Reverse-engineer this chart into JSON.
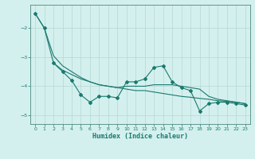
{
  "xlabel": "Humidex (Indice chaleur)",
  "bg_color": "#d4f0ee",
  "grid_color": "#b8dbd8",
  "line_color": "#1a7a6e",
  "spine_color": "#4a8a80",
  "xlim": [
    -0.5,
    23.5
  ],
  "ylim": [
    -5.3,
    -1.2
  ],
  "yticks": [
    -5,
    -4,
    -3,
    -2
  ],
  "xticks": [
    0,
    1,
    2,
    3,
    4,
    5,
    6,
    7,
    8,
    9,
    10,
    11,
    12,
    13,
    14,
    15,
    16,
    17,
    18,
    19,
    20,
    21,
    22,
    23
  ],
  "series1_x": [
    0,
    1,
    2,
    3,
    4,
    5,
    6,
    7,
    8,
    9,
    10,
    11,
    12,
    13,
    14,
    15,
    16,
    17,
    18,
    19,
    20,
    21,
    22,
    23
  ],
  "series1_y": [
    -1.5,
    -2.0,
    -3.2,
    -3.5,
    -3.8,
    -4.3,
    -4.55,
    -4.35,
    -4.35,
    -4.4,
    -3.85,
    -3.85,
    -3.75,
    -3.35,
    -3.3,
    -3.85,
    -4.05,
    -4.15,
    -4.85,
    -4.6,
    -4.55,
    -4.55,
    -4.6,
    -4.65
  ],
  "series2_x": [
    2,
    3,
    4,
    5,
    6,
    7,
    8,
    9,
    10,
    11,
    12,
    13,
    14,
    15,
    16,
    17,
    18,
    19,
    20,
    21,
    22,
    23
  ],
  "series2_y": [
    -3.2,
    -3.45,
    -3.6,
    -3.75,
    -3.85,
    -3.95,
    -4.0,
    -4.05,
    -4.1,
    -4.15,
    -4.15,
    -4.2,
    -4.25,
    -4.3,
    -4.35,
    -4.38,
    -4.42,
    -4.45,
    -4.5,
    -4.52,
    -4.55,
    -4.6
  ],
  "series3_x": [
    0,
    1,
    2,
    3,
    4,
    5,
    6,
    7,
    8,
    9,
    10,
    11,
    12,
    13,
    14,
    15,
    16,
    17,
    18,
    19,
    20,
    21,
    22,
    23
  ],
  "series3_y": [
    -1.5,
    -2.0,
    -2.95,
    -3.3,
    -3.5,
    -3.7,
    -3.85,
    -3.95,
    -4.0,
    -4.05,
    -4.0,
    -4.0,
    -4.0,
    -3.95,
    -3.95,
    -3.95,
    -4.0,
    -4.05,
    -4.1,
    -4.35,
    -4.45,
    -4.5,
    -4.55,
    -4.6
  ]
}
